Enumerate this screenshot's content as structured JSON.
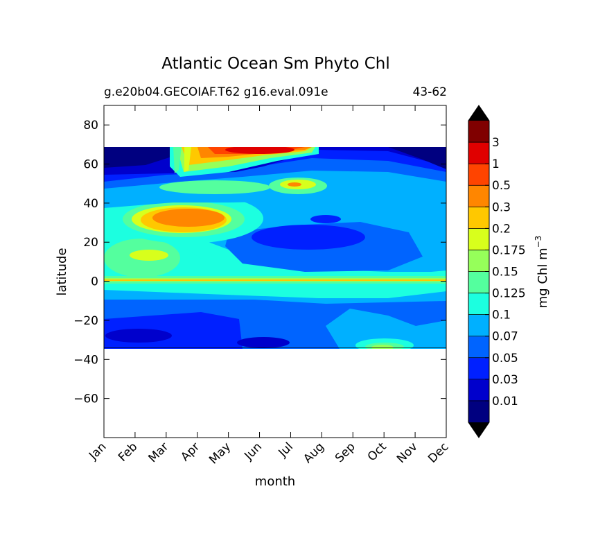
{
  "chart_data": {
    "type": "contourf",
    "title": "Atlantic Ocean Sm Phyto Chl",
    "subtitle_left": "g.e20b04.GECOIAF.T62 g16.eval.091e",
    "subtitle_right": "43-62",
    "xlabel": "month",
    "ylabel": "latitude",
    "x_ticks": [
      "Jan",
      "Feb",
      "Mar",
      "Apr",
      "May",
      "Jun",
      "Jul",
      "Aug",
      "Sep",
      "Oct",
      "Nov",
      "Dec"
    ],
    "y_ticks": [
      80,
      60,
      40,
      20,
      0,
      -20,
      -40,
      -60
    ],
    "ylim": [
      -80,
      90
    ],
    "data_lat_range": [
      -34,
      69
    ],
    "colorbar": {
      "label": "mg Chl m",
      "label_superscript": "−3",
      "tick_labels": [
        "0.01",
        "0.03",
        "0.05",
        "0.07",
        "0.1",
        "0.125",
        "0.15",
        "0.175",
        "0.2",
        "0.3",
        "0.5",
        "1",
        "3"
      ],
      "levels": [
        0.01,
        0.03,
        0.05,
        0.07,
        0.1,
        0.125,
        0.15,
        0.175,
        0.2,
        0.3,
        0.5,
        1,
        3
      ],
      "colors": [
        "#000080",
        "#0000cc",
        "#0020ff",
        "#0064ff",
        "#00b0ff",
        "#1cffe0",
        "#54ff9e",
        "#96ff5a",
        "#d8ff1c",
        "#ffc800",
        "#ff8600",
        "#ff4400",
        "#e00000",
        "#800000"
      ],
      "extend": "both"
    }
  }
}
